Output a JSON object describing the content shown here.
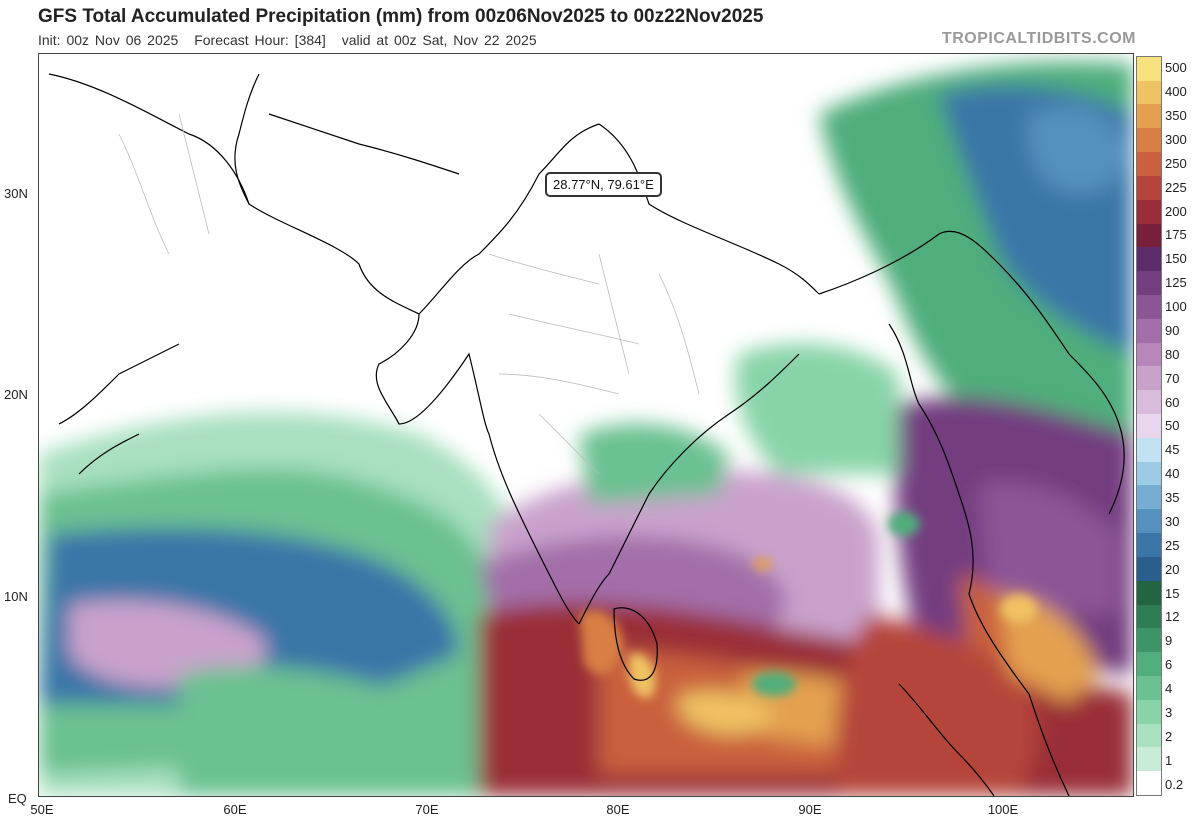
{
  "header": {
    "title": "GFS Total Accumulated Precipitation (mm) from 00z06Nov2025 to 00z22Nov2025",
    "init": "Init: 00z Nov 06 2025",
    "forecast_hour": "Forecast Hour: [384]",
    "valid": "valid at 00z Sat, Nov 22 2025",
    "brand": "TROPICALTIDBITS.COM"
  },
  "map": {
    "lon_range": [
      50,
      107
    ],
    "lat_range": [
      0,
      38
    ],
    "lat_labels": [
      "30N",
      "20N",
      "10N",
      "EQ"
    ],
    "lon_labels": [
      "50E",
      "60E",
      "70E",
      "80E",
      "90E",
      "100E"
    ],
    "tooltip": "28.77°N, 79.61°E"
  },
  "colorbar": {
    "levels": [
      "0.2",
      "1",
      "2",
      "3",
      "4",
      "6",
      "9",
      "12",
      "15",
      "20",
      "25",
      "30",
      "35",
      "40",
      "45",
      "50",
      "60",
      "70",
      "80",
      "90",
      "100",
      "125",
      "150",
      "175",
      "200",
      "225",
      "250",
      "300",
      "350",
      "400",
      "500"
    ],
    "colors": [
      "#ffffff",
      "#c8ecd8",
      "#a8e0c0",
      "#88d4a8",
      "#6bc191",
      "#4fae7b",
      "#3d9466",
      "#2f7d54",
      "#236443",
      "#2a5e8c",
      "#3a76a8",
      "#5591be",
      "#77add2",
      "#9ccbe6",
      "#c2e2f4",
      "#e8d6ec",
      "#d9bcdc",
      "#c9a2cc",
      "#b787bb",
      "#a36ea9",
      "#8c5596",
      "#733e80",
      "#5c2b69",
      "#7a1f3a",
      "#9a2e38",
      "#b5453a",
      "#c9603e",
      "#d77f45",
      "#e4a050",
      "#efc264",
      "#f7e07e"
    ]
  }
}
